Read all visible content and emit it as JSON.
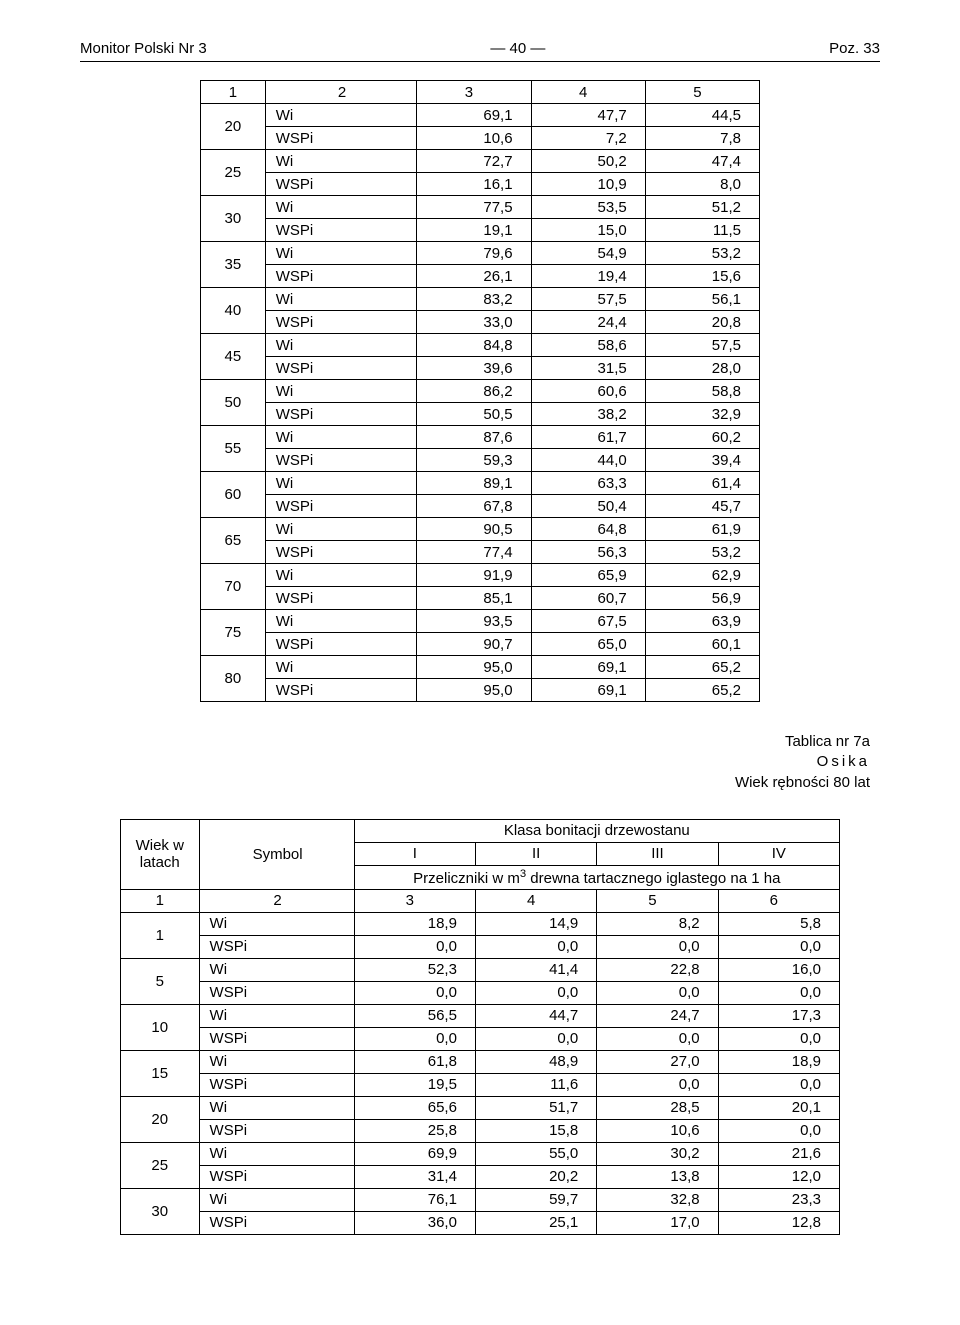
{
  "header": {
    "left": "Monitor Polski Nr 3",
    "center": "— 40 —",
    "right": "Poz. 33"
  },
  "table1": {
    "header_nums": [
      "1",
      "2",
      "3",
      "4",
      "5"
    ],
    "symbols": [
      "Wi",
      "WSPi"
    ],
    "rows": [
      {
        "col1": "20",
        "wi": [
          "69,1",
          "47,7",
          "44,5"
        ],
        "wspi": [
          "10,6",
          "7,2",
          "7,8"
        ]
      },
      {
        "col1": "25",
        "wi": [
          "72,7",
          "50,2",
          "47,4"
        ],
        "wspi": [
          "16,1",
          "10,9",
          "8,0"
        ]
      },
      {
        "col1": "30",
        "wi": [
          "77,5",
          "53,5",
          "51,2"
        ],
        "wspi": [
          "19,1",
          "15,0",
          "11,5"
        ]
      },
      {
        "col1": "35",
        "wi": [
          "79,6",
          "54,9",
          "53,2"
        ],
        "wspi": [
          "26,1",
          "19,4",
          "15,6"
        ]
      },
      {
        "col1": "40",
        "wi": [
          "83,2",
          "57,5",
          "56,1"
        ],
        "wspi": [
          "33,0",
          "24,4",
          "20,8"
        ]
      },
      {
        "col1": "45",
        "wi": [
          "84,8",
          "58,6",
          "57,5"
        ],
        "wspi": [
          "39,6",
          "31,5",
          "28,0"
        ]
      },
      {
        "col1": "50",
        "wi": [
          "86,2",
          "60,6",
          "58,8"
        ],
        "wspi": [
          "50,5",
          "38,2",
          "32,9"
        ]
      },
      {
        "col1": "55",
        "wi": [
          "87,6",
          "61,7",
          "60,2"
        ],
        "wspi": [
          "59,3",
          "44,0",
          "39,4"
        ]
      },
      {
        "col1": "60",
        "wi": [
          "89,1",
          "63,3",
          "61,4"
        ],
        "wspi": [
          "67,8",
          "50,4",
          "45,7"
        ]
      },
      {
        "col1": "65",
        "wi": [
          "90,5",
          "64,8",
          "61,9"
        ],
        "wspi": [
          "77,4",
          "56,3",
          "53,2"
        ]
      },
      {
        "col1": "70",
        "wi": [
          "91,9",
          "65,9",
          "62,9"
        ],
        "wspi": [
          "85,1",
          "60,7",
          "56,9"
        ]
      },
      {
        "col1": "75",
        "wi": [
          "93,5",
          "67,5",
          "63,9"
        ],
        "wspi": [
          "90,7",
          "65,0",
          "60,1"
        ]
      },
      {
        "col1": "80",
        "wi": [
          "95,0",
          "69,1",
          "65,2"
        ],
        "wspi": [
          "95,0",
          "69,1",
          "65,2"
        ]
      }
    ]
  },
  "caption": {
    "line1": "Tablica nr 7a",
    "line2": "Osika",
    "line3": "Wiek rębności 80 lat"
  },
  "table2": {
    "col_head_wiek": "Wiek w latach",
    "col_head_symbol": "Symbol",
    "klasa_hdr": "Klasa bonitacji drzewostanu",
    "roman": [
      "I",
      "II",
      "III",
      "IV"
    ],
    "przeliczniki_pre": "Przeliczniki w m",
    "przeliczniki_sup": "3",
    "przeliczniki_post": " drewna tartacznego iglastego na 1 ha",
    "header_nums": [
      "1",
      "2",
      "3",
      "4",
      "5",
      "6"
    ],
    "symbols": [
      "Wi",
      "WSPi"
    ],
    "rows": [
      {
        "col1": "1",
        "wi": [
          "18,9",
          "14,9",
          "8,2",
          "5,8"
        ],
        "wspi": [
          "0,0",
          "0,0",
          "0,0",
          "0,0"
        ]
      },
      {
        "col1": "5",
        "wi": [
          "52,3",
          "41,4",
          "22,8",
          "16,0"
        ],
        "wspi": [
          "0,0",
          "0,0",
          "0,0",
          "0,0"
        ]
      },
      {
        "col1": "10",
        "wi": [
          "56,5",
          "44,7",
          "24,7",
          "17,3"
        ],
        "wspi": [
          "0,0",
          "0,0",
          "0,0",
          "0,0"
        ]
      },
      {
        "col1": "15",
        "wi": [
          "61,8",
          "48,9",
          "27,0",
          "18,9"
        ],
        "wspi": [
          "19,5",
          "11,6",
          "0,0",
          "0,0"
        ]
      },
      {
        "col1": "20",
        "wi": [
          "65,6",
          "51,7",
          "28,5",
          "20,1"
        ],
        "wspi": [
          "25,8",
          "15,8",
          "10,6",
          "0,0"
        ]
      },
      {
        "col1": "25",
        "wi": [
          "69,9",
          "55,0",
          "30,2",
          "21,6"
        ],
        "wspi": [
          "31,4",
          "20,2",
          "13,8",
          "12,0"
        ]
      },
      {
        "col1": "30",
        "wi": [
          "76,1",
          "59,7",
          "32,8",
          "23,3"
        ],
        "wspi": [
          "36,0",
          "25,1",
          "17,0",
          "12,8"
        ]
      }
    ]
  }
}
